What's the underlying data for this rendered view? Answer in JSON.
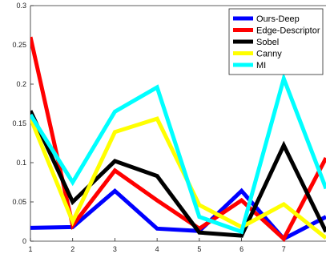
{
  "chart_data": {
    "type": "line",
    "x": [
      1,
      2,
      3,
      4,
      5,
      6,
      7,
      8
    ],
    "xlim": [
      1,
      8
    ],
    "ylim": [
      0,
      0.3
    ],
    "xticks": [
      "1",
      "2",
      "3",
      "4",
      "5",
      "6",
      "7"
    ],
    "yticks": [
      "0",
      "0.05",
      "0.1",
      "0.15",
      "0.2",
      "0.25",
      "0.3"
    ],
    "legend_position": "top-right",
    "grid": false,
    "series": [
      {
        "name": "Ours-Deep",
        "color": "#0000ff",
        "values": [
          0.017,
          0.018,
          0.064,
          0.016,
          0.013,
          0.064,
          0.003,
          0.031
        ]
      },
      {
        "name": "Edge-Descriptor",
        "color": "#ff0000",
        "values": [
          0.26,
          0.02,
          0.09,
          0.052,
          0.016,
          0.052,
          0.003,
          0.106
        ]
      },
      {
        "name": "Sobel",
        "color": "#000000",
        "values": [
          0.166,
          0.05,
          0.102,
          0.083,
          0.011,
          0.007,
          0.122,
          0.012
        ]
      },
      {
        "name": "Canny",
        "color": "#ffff00",
        "values": [
          0.157,
          0.025,
          0.139,
          0.156,
          0.046,
          0.018,
          0.047,
          0.004
        ]
      },
      {
        "name": "MI",
        "color": "#00ffff",
        "values": [
          0.161,
          0.075,
          0.165,
          0.196,
          0.031,
          0.012,
          0.207,
          0.067
        ]
      }
    ]
  }
}
